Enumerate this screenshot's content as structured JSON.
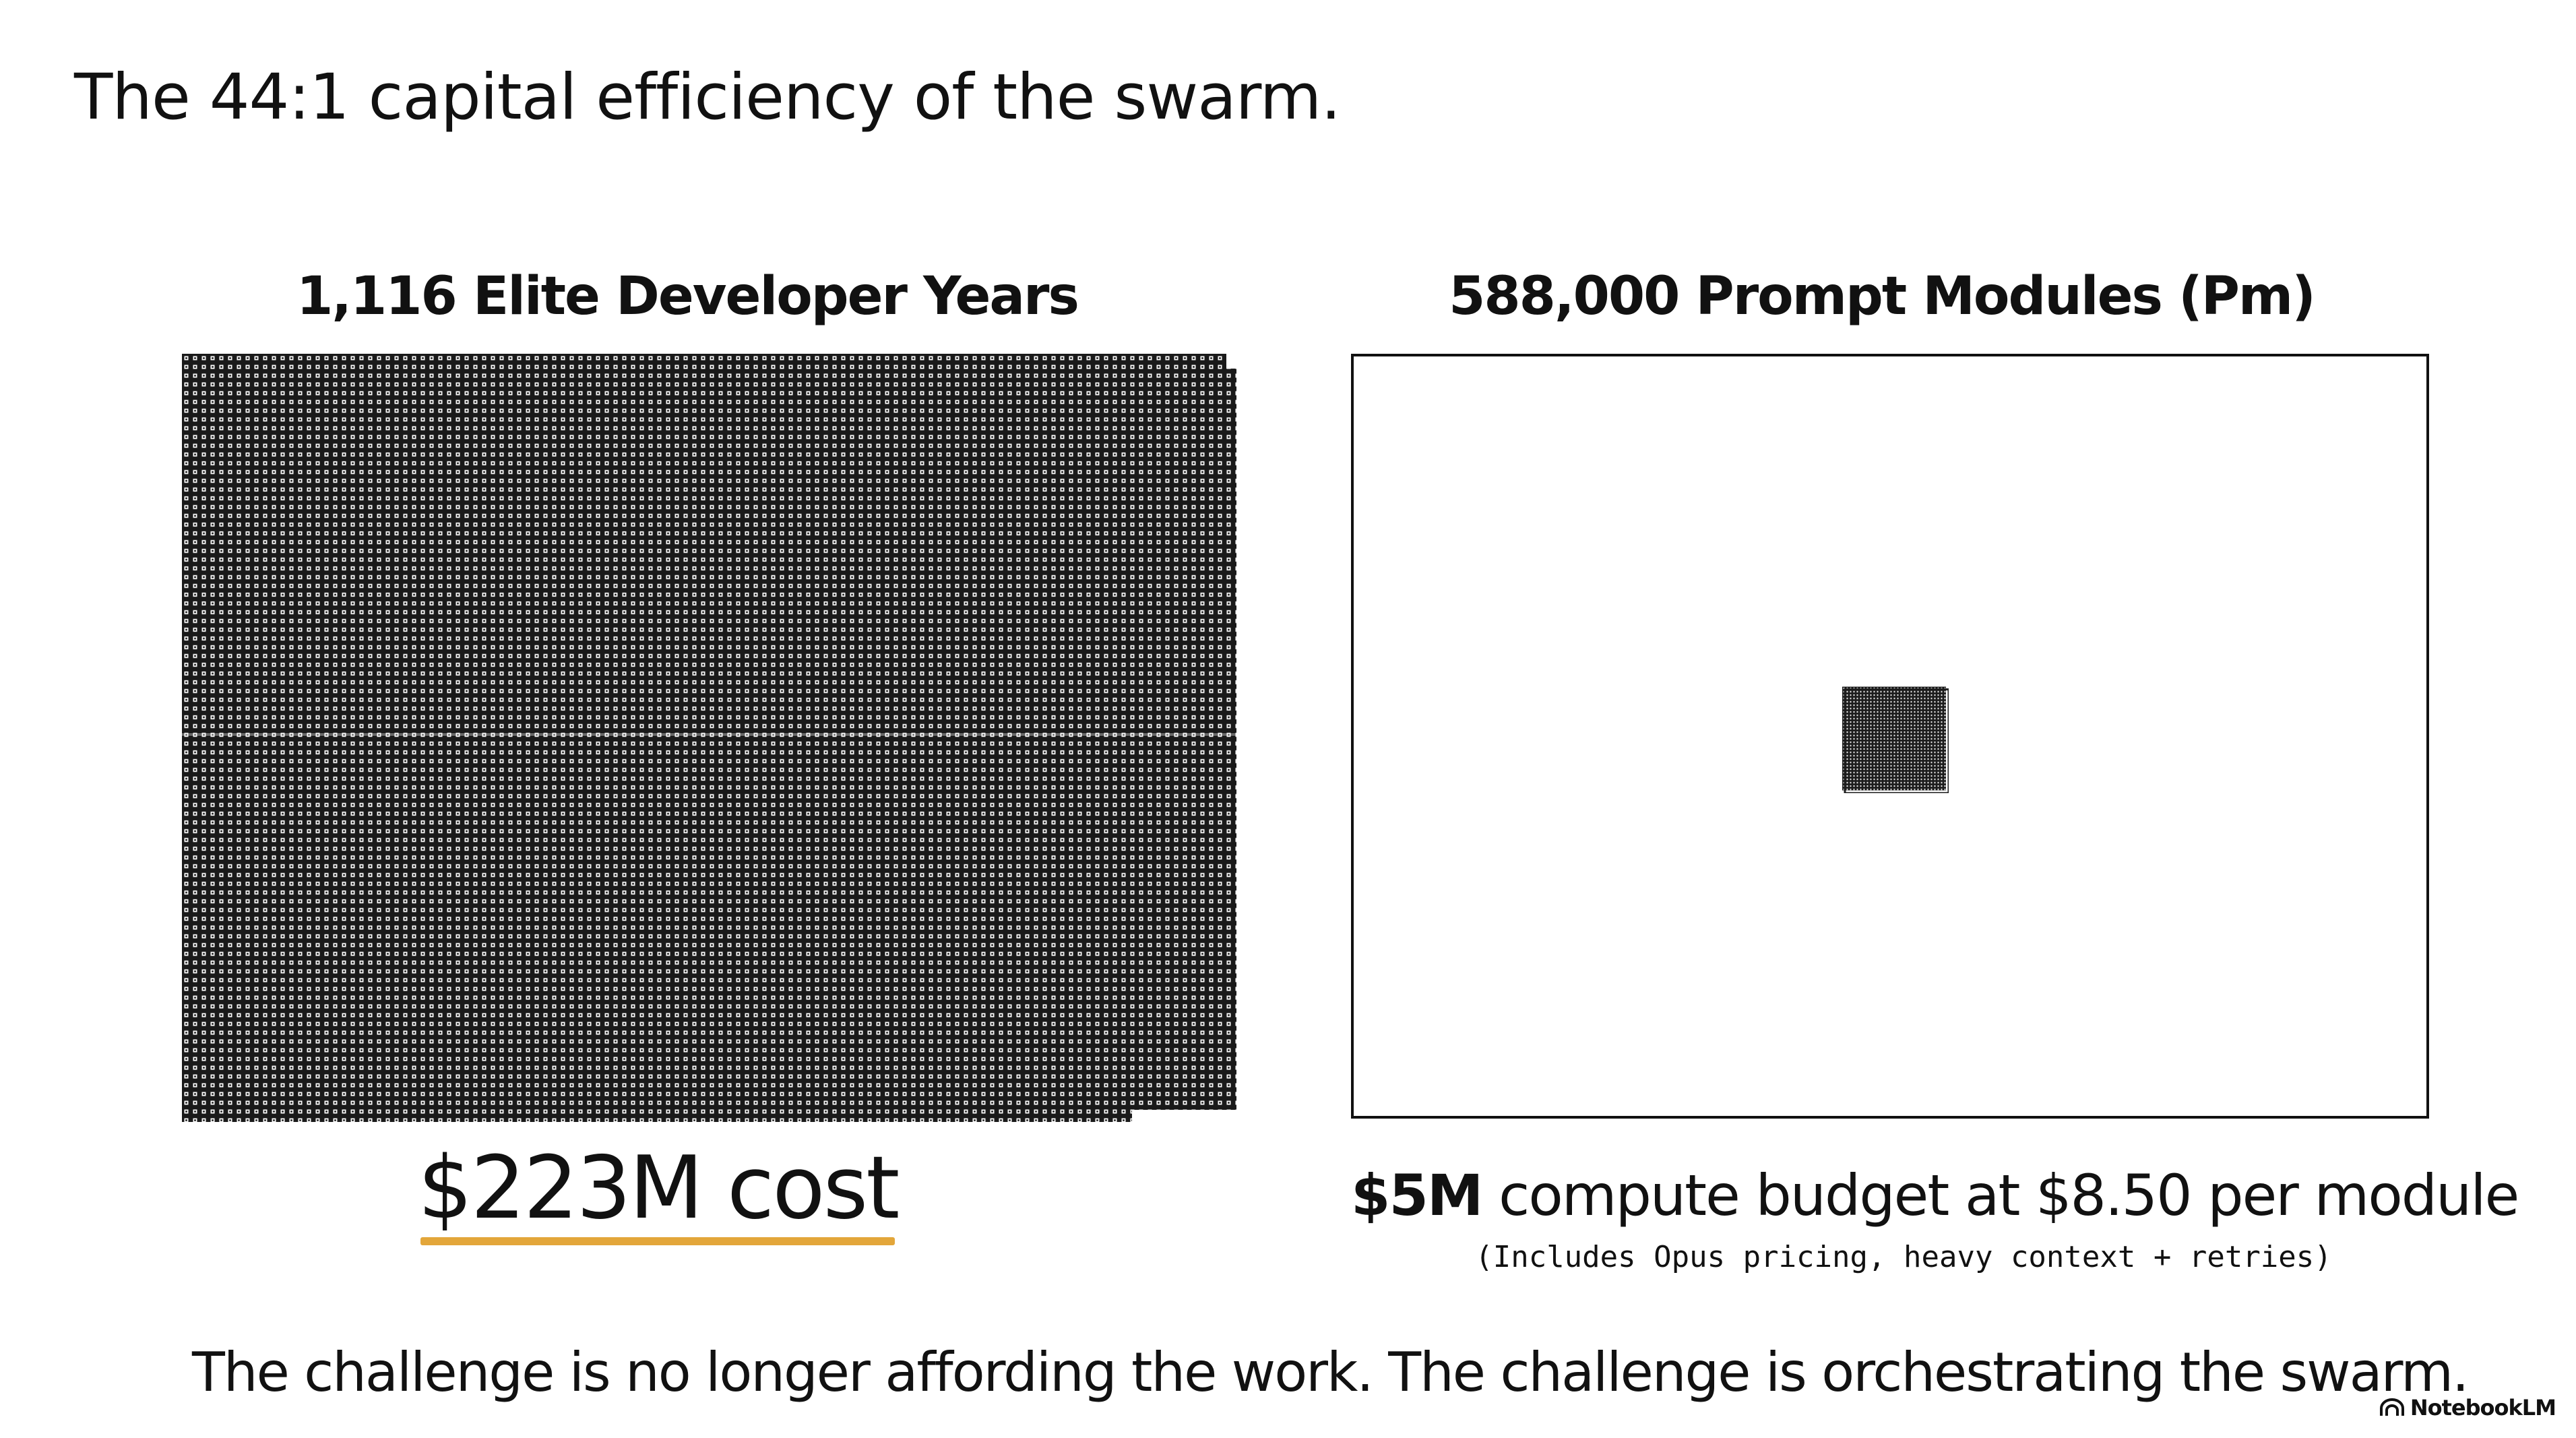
{
  "title": "The 44:1 capital efficiency of the swarm.",
  "left_panel": {
    "heading": "1,116 Elite Developer Years",
    "cost": "$223M cost",
    "icon": "developer-year-square-icon",
    "units_shown": 1116
  },
  "right_panel": {
    "heading": "588,000 Prompt Modules (Pm)",
    "budget_bold": "$5M",
    "budget_rest": " compute budget at $8.50 per module",
    "note": "(Includes Opus pricing, heavy context + retries)",
    "icon": "prompt-module-cluster-icon"
  },
  "footer": {
    "text": "The challenge is no longer affording the work. The challenge is orchestrating the swarm.",
    "brand": "NotebookLM",
    "brand_icon": "notebooklm-logo-icon"
  },
  "colors": {
    "ink": "#111111",
    "accent_underline": "#e3a63a",
    "background": "#ffffff"
  }
}
